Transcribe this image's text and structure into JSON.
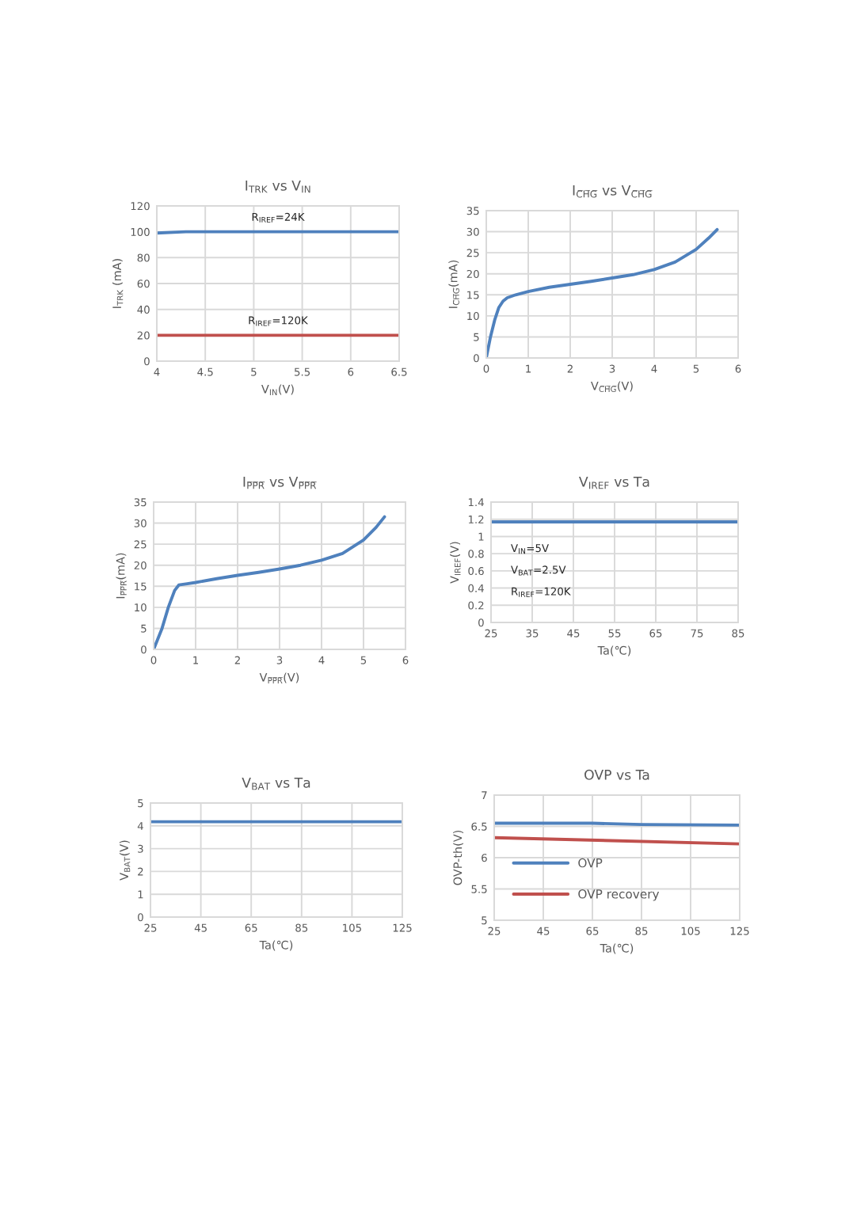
{
  "chart_data": [
    {
      "type": "line",
      "title": "I$_{TRK}$ vs V$_{IN}$",
      "xlabel": "V$_{IN}$(V)",
      "ylabel": "I$_{TRK}$ (mA)",
      "xlim": [
        4,
        6.5
      ],
      "xticks": [
        4,
        4.5,
        5,
        5.5,
        6,
        6.5
      ],
      "ylim": [
        0,
        120
      ],
      "yticks": [
        0,
        20,
        40,
        60,
        80,
        100,
        120
      ],
      "grid": true,
      "legend": false,
      "series": [
        {
          "name": "R$_{IREF}$=24K",
          "color": "#4f81bd",
          "x": [
            4,
            4.3,
            6.5
          ],
          "values": [
            99,
            100,
            100
          ]
        },
        {
          "name": "R$_{IREF}$=120K",
          "color": "#c0504d",
          "x": [
            4,
            6.5
          ],
          "values": [
            20,
            20
          ]
        }
      ]
    },
    {
      "type": "line",
      "title": "I$_{C̅H̅G̅}$ vs V$_{C̅H̅G̅}$",
      "xlabel": "V$_{C̅H̅G̅}$(V)",
      "ylabel": "I$_{C̅H̅G̅}$(mA)",
      "xlim": [
        0,
        6
      ],
      "xticks": [
        0,
        1,
        2,
        3,
        4,
        5,
        6
      ],
      "ylim": [
        0,
        35
      ],
      "yticks": [
        0,
        5,
        10,
        15,
        20,
        25,
        30,
        35
      ],
      "grid": true,
      "legend": false,
      "series": [
        {
          "color": "#4f81bd",
          "x": [
            0,
            0.1,
            0.2,
            0.3,
            0.4,
            0.5,
            0.7,
            1,
            1.5,
            2,
            2.5,
            3,
            3.5,
            4,
            4.5,
            5,
            5.3,
            5.5
          ],
          "values": [
            0,
            5,
            9,
            12,
            13.5,
            14.3,
            15,
            15.8,
            16.8,
            17.5,
            18.2,
            19,
            19.8,
            21,
            22.8,
            25.8,
            28.5,
            30.5
          ]
        }
      ]
    },
    {
      "type": "line",
      "title": "I$_{P̅P̅R̅}$ vs V$_{P̅P̅R̅}$",
      "xlabel": "V$_{P̅P̅R̅}$(V)",
      "ylabel": "I$_{P̅P̅R̅}$(mA)",
      "xlim": [
        0,
        6
      ],
      "xticks": [
        0,
        1,
        2,
        3,
        4,
        5,
        6
      ],
      "ylim": [
        0,
        35
      ],
      "yticks": [
        0,
        5,
        10,
        15,
        20,
        25,
        30,
        35
      ],
      "grid": true,
      "legend": false,
      "series": [
        {
          "color": "#4f81bd",
          "x": [
            0,
            0.2,
            0.35,
            0.5,
            0.6,
            0.8,
            1,
            1.5,
            2,
            2.5,
            3,
            3.5,
            4,
            4.5,
            5,
            5.3,
            5.5
          ],
          "values": [
            0,
            5,
            10,
            14,
            15.3,
            15.6,
            15.9,
            16.8,
            17.6,
            18.3,
            19.1,
            20,
            21.2,
            22.8,
            26,
            29,
            31.5
          ]
        }
      ]
    },
    {
      "type": "line",
      "title": "V$_{IREF}$ vs Ta",
      "xlabel": "Ta(℃)",
      "ylabel": "V$_{IREF}$(V)",
      "xlim": [
        25,
        85
      ],
      "xticks": [
        25,
        35,
        45,
        55,
        65,
        75,
        85
      ],
      "ylim": [
        0,
        1.4
      ],
      "yticks": [
        0,
        0.2,
        0.4,
        0.6,
        0.8,
        1,
        1.2,
        1.4
      ],
      "grid": true,
      "legend": false,
      "annotations": [
        "V$_{IN}$=5V",
        "V$_{BAT}$=2.5V",
        "R$_{IREF}$=120K"
      ],
      "series": [
        {
          "color": "#4f81bd",
          "x": [
            25,
            85
          ],
          "values": [
            1.17,
            1.17
          ]
        }
      ]
    },
    {
      "type": "line",
      "title": "V$_{BAT}$ vs Ta",
      "xlabel": "Ta(℃)",
      "ylabel": "V$_{BAT}$(V)",
      "xlim": [
        25,
        125
      ],
      "xticks": [
        25,
        45,
        65,
        85,
        105,
        125
      ],
      "ylim": [
        0,
        5
      ],
      "yticks": [
        0,
        1,
        2,
        3,
        4,
        5
      ],
      "grid": true,
      "legend": false,
      "series": [
        {
          "color": "#4f81bd",
          "x": [
            25,
            125
          ],
          "values": [
            4.18,
            4.18
          ]
        }
      ]
    },
    {
      "type": "line",
      "title": "OVP vs Ta",
      "xlabel": "Ta(℃)",
      "ylabel": "OVP-th(V)",
      "xlim": [
        25,
        125
      ],
      "xticks": [
        25,
        45,
        65,
        85,
        105,
        125
      ],
      "ylim": [
        5,
        7
      ],
      "yticks": [
        5,
        5.5,
        6,
        6.5,
        7
      ],
      "grid": true,
      "legend": "bottom left",
      "series": [
        {
          "name": "OVP",
          "color": "#4f81bd",
          "x": [
            25,
            65,
            85,
            125
          ],
          "values": [
            6.55,
            6.55,
            6.53,
            6.52
          ]
        },
        {
          "name": "OVP recovery",
          "color": "#c0504d",
          "x": [
            25,
            125
          ],
          "values": [
            6.32,
            6.22
          ]
        }
      ]
    }
  ]
}
